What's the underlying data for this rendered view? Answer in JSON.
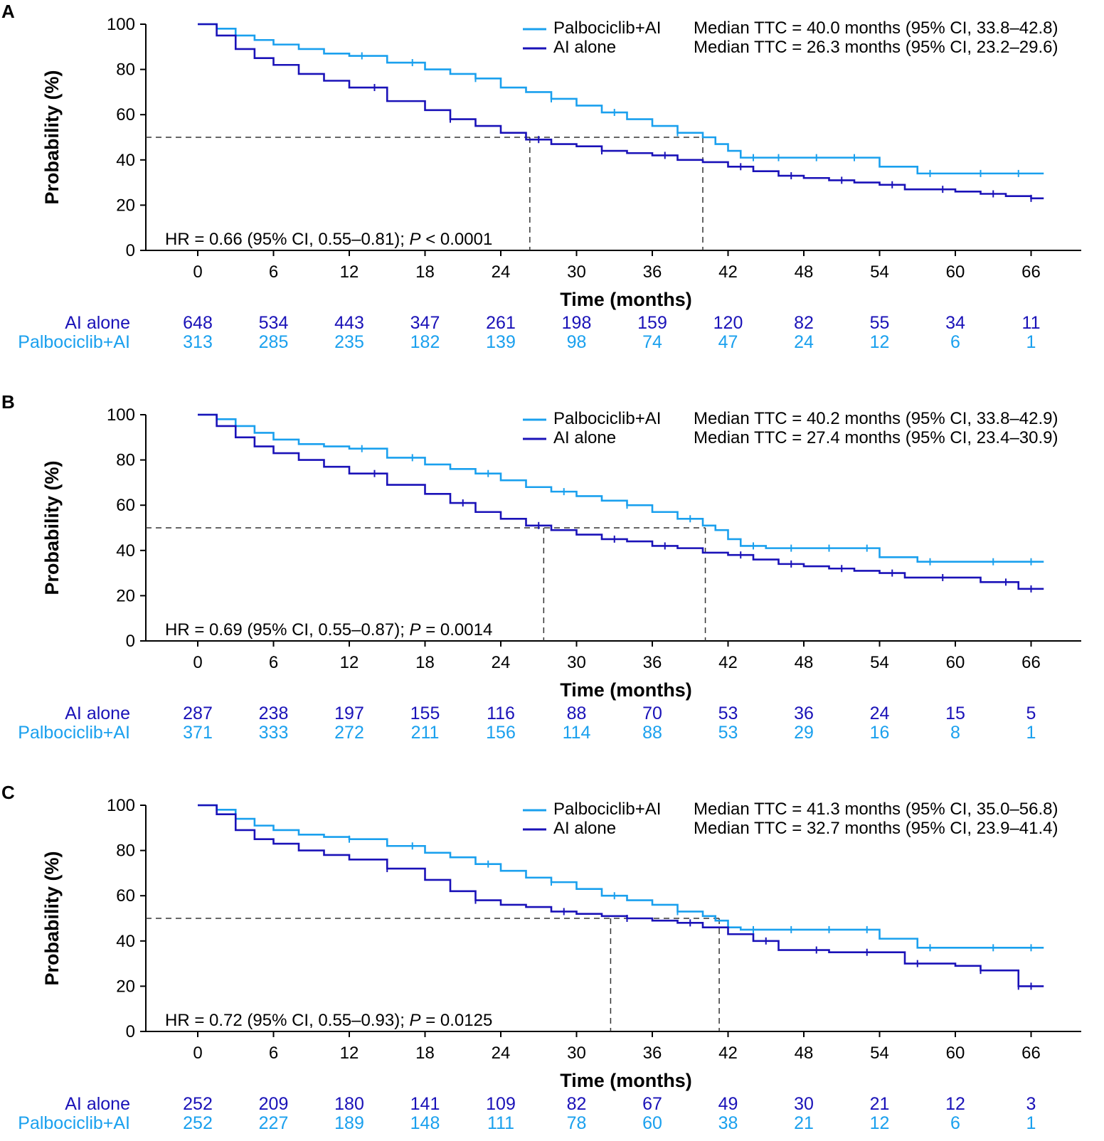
{
  "colors": {
    "palbociclib": "#1aa0ee",
    "ai_alone": "#1a12b8",
    "axis": "#000000",
    "reference": "#333333"
  },
  "chart_data": [
    {
      "type": "line",
      "panel": "A",
      "xlabel": "Time (months)",
      "ylabel": "Probability (%)",
      "xlim": [
        -5,
        69
      ],
      "ylim": [
        0,
        100
      ],
      "xticks": [
        "0",
        "6",
        "12",
        "18",
        "24",
        "30",
        "36",
        "42",
        "48",
        "54",
        "60",
        "66"
      ],
      "yticks": [
        "0",
        "20",
        "40",
        "60",
        "80",
        "100"
      ],
      "legend": {
        "palbociclib": {
          "label": "Palbociclib+AI",
          "median_text": "Median TTC = 40.0 months (95% CI, 33.8–42.8)"
        },
        "ai_alone": {
          "label": "AI alone",
          "median_text": "Median TTC = 26.3 months (95% CI, 23.2–29.6)"
        }
      },
      "hr_text": {
        "prefix": "HR = 0.66 (95% CI, 0.55–0.81); ",
        "p": "P",
        "suffix": " < 0.0001"
      },
      "medians": {
        "ai_alone": 26.3,
        "palbociclib": 40.0
      },
      "series": [
        {
          "name": "Palbociclib+AI",
          "key": "palbociclib",
          "x": [
            0,
            1.5,
            3,
            4.5,
            6,
            8,
            10,
            12,
            15,
            18,
            20,
            22,
            24,
            26,
            28,
            30,
            32,
            34,
            36,
            38,
            40,
            41,
            42,
            43,
            45,
            48,
            50,
            52,
            54,
            57,
            60,
            62,
            64,
            66,
            67
          ],
          "y": [
            100,
            98,
            95,
            93,
            91,
            89,
            87,
            86,
            83,
            80,
            78,
            76,
            72,
            70,
            67,
            64,
            61,
            58,
            55,
            52,
            50,
            47,
            44,
            41,
            41,
            41,
            41,
            41,
            37,
            34,
            34,
            34,
            34,
            34,
            34
          ],
          "censor_x": [
            13,
            17,
            22,
            28,
            33,
            38,
            44,
            46,
            49,
            52,
            58,
            62,
            65
          ]
        },
        {
          "name": "AI alone",
          "key": "ai_alone",
          "x": [
            0,
            1.5,
            3,
            4.5,
            6,
            8,
            10,
            12,
            15,
            18,
            20,
            22,
            24,
            26,
            28,
            30,
            32,
            34,
            36,
            38,
            40,
            42,
            44,
            46,
            48,
            50,
            52,
            54,
            56,
            58,
            60,
            62,
            64,
            66,
            67
          ],
          "y": [
            100,
            95,
            89,
            85,
            82,
            78,
            75,
            72,
            66,
            62,
            58,
            55,
            52,
            49,
            47,
            46,
            44,
            43,
            42,
            40,
            39,
            37,
            35,
            33,
            32,
            31,
            30,
            29,
            27,
            27,
            26,
            25,
            24,
            23,
            23
          ],
          "censor_x": [
            14,
            20,
            27,
            32,
            37,
            43,
            47,
            51,
            55,
            59,
            63,
            66
          ]
        }
      ],
      "risk_table": {
        "times": [
          "0",
          "6",
          "12",
          "18",
          "24",
          "30",
          "36",
          "42",
          "48",
          "54",
          "60",
          "66"
        ],
        "ai_alone": {
          "label": "AI alone",
          "counts": [
            "648",
            "534",
            "443",
            "347",
            "261",
            "198",
            "159",
            "120",
            "82",
            "55",
            "34",
            "11"
          ]
        },
        "palbociclib": {
          "label": "Palbociclib+AI",
          "counts": [
            "313",
            "285",
            "235",
            "182",
            "139",
            "98",
            "74",
            "47",
            "24",
            "12",
            "6",
            "1"
          ]
        }
      }
    },
    {
      "type": "line",
      "panel": "B",
      "xlabel": "Time (months)",
      "ylabel": "Probability (%)",
      "xlim": [
        -5,
        69
      ],
      "ylim": [
        0,
        100
      ],
      "xticks": [
        "0",
        "6",
        "12",
        "18",
        "24",
        "30",
        "36",
        "42",
        "48",
        "54",
        "60",
        "66"
      ],
      "yticks": [
        "0",
        "20",
        "40",
        "60",
        "80",
        "100"
      ],
      "legend": {
        "palbociclib": {
          "label": "Palbociclib+AI",
          "median_text": "Median TTC = 40.2 months (95% CI, 33.8–42.9)"
        },
        "ai_alone": {
          "label": "AI alone",
          "median_text": "Median TTC = 27.4 months (95% CI, 23.4–30.9)"
        }
      },
      "hr_text": {
        "prefix": "HR = 0.69 (95% CI, 0.55–0.87); ",
        "p": "P",
        "suffix": " = 0.0014"
      },
      "medians": {
        "ai_alone": 27.4,
        "palbociclib": 40.2
      },
      "series": [
        {
          "name": "Palbociclib+AI",
          "key": "palbociclib",
          "x": [
            0,
            1.5,
            3,
            4.5,
            6,
            8,
            10,
            12,
            15,
            18,
            20,
            22,
            24,
            26,
            28,
            30,
            32,
            34,
            36,
            38,
            40,
            41,
            42,
            43,
            45,
            48,
            50,
            52,
            54,
            57,
            60,
            62,
            64,
            66,
            67
          ],
          "y": [
            100,
            98,
            95,
            92,
            89,
            87,
            86,
            85,
            81,
            78,
            76,
            74,
            71,
            68,
            66,
            64,
            62,
            60,
            57,
            54,
            51,
            49,
            45,
            42,
            41,
            41,
            41,
            41,
            37,
            35,
            35,
            35,
            35,
            35,
            35
          ],
          "censor_x": [
            13,
            17,
            23,
            29,
            34,
            39,
            44,
            47,
            50,
            53,
            58,
            63,
            66
          ]
        },
        {
          "name": "AI alone",
          "key": "ai_alone",
          "x": [
            0,
            1.5,
            3,
            4.5,
            6,
            8,
            10,
            12,
            15,
            18,
            20,
            22,
            24,
            26,
            28,
            30,
            32,
            34,
            36,
            38,
            40,
            42,
            44,
            46,
            48,
            50,
            52,
            54,
            56,
            58,
            60,
            62,
            64,
            65,
            67
          ],
          "y": [
            100,
            95,
            90,
            86,
            83,
            80,
            77,
            74,
            69,
            65,
            61,
            57,
            54,
            51,
            49,
            47,
            45,
            44,
            42,
            41,
            39,
            38,
            36,
            34,
            33,
            32,
            31,
            30,
            28,
            28,
            28,
            26,
            26,
            23,
            23
          ],
          "censor_x": [
            14,
            21,
            27,
            33,
            37,
            43,
            47,
            51,
            55,
            59,
            64,
            66
          ]
        }
      ],
      "risk_table": {
        "times": [
          "0",
          "6",
          "12",
          "18",
          "24",
          "30",
          "36",
          "42",
          "48",
          "54",
          "60",
          "66"
        ],
        "ai_alone": {
          "label": "AI alone",
          "counts": [
            "287",
            "238",
            "197",
            "155",
            "116",
            "88",
            "70",
            "53",
            "36",
            "24",
            "15",
            "5"
          ]
        },
        "palbociclib": {
          "label": "Palbociclib+AI",
          "counts": [
            "371",
            "333",
            "272",
            "211",
            "156",
            "114",
            "88",
            "53",
            "29",
            "16",
            "8",
            "1"
          ]
        }
      }
    },
    {
      "type": "line",
      "panel": "C",
      "xlabel": "Time (months)",
      "ylabel": "Probability (%)",
      "xlim": [
        -5,
        69
      ],
      "ylim": [
        0,
        100
      ],
      "xticks": [
        "0",
        "6",
        "12",
        "18",
        "24",
        "30",
        "36",
        "42",
        "48",
        "54",
        "60",
        "66"
      ],
      "yticks": [
        "0",
        "20",
        "40",
        "60",
        "80",
        "100"
      ],
      "legend": {
        "palbociclib": {
          "label": "Palbociclib+AI",
          "median_text": "Median TTC = 41.3 months (95% CI, 35.0–56.8)"
        },
        "ai_alone": {
          "label": "AI alone",
          "median_text": "Median TTC = 32.7 months (95% CI, 23.9–41.4)"
        }
      },
      "hr_text": {
        "prefix": "HR = 0.72 (95% CI, 0.55–0.93); ",
        "p": "P",
        "suffix": " = 0.0125"
      },
      "medians": {
        "ai_alone": 32.7,
        "palbociclib": 41.3
      },
      "series": [
        {
          "name": "Palbociclib+AI",
          "key": "palbociclib",
          "x": [
            0,
            1.5,
            3,
            4.5,
            6,
            8,
            10,
            12,
            15,
            18,
            20,
            22,
            24,
            26,
            28,
            30,
            32,
            34,
            36,
            38,
            40,
            41,
            42,
            43,
            45,
            48,
            50,
            52,
            54,
            57,
            60,
            62,
            64,
            66,
            67
          ],
          "y": [
            100,
            98,
            94,
            91,
            89,
            87,
            86,
            85,
            82,
            79,
            77,
            74,
            71,
            68,
            66,
            63,
            60,
            58,
            56,
            53,
            51,
            49,
            46,
            45,
            45,
            45,
            45,
            45,
            41,
            37,
            37,
            37,
            37,
            37,
            37
          ],
          "censor_x": [
            12,
            17,
            23,
            28,
            33,
            38,
            44,
            47,
            50,
            53,
            58,
            63,
            66
          ]
        },
        {
          "name": "AI alone",
          "key": "ai_alone",
          "x": [
            0,
            1.5,
            3,
            4.5,
            6,
            8,
            10,
            12,
            15,
            18,
            20,
            22,
            24,
            26,
            28,
            30,
            32,
            34,
            36,
            38,
            40,
            42,
            44,
            46,
            48,
            50,
            52,
            54,
            56,
            58,
            60,
            62,
            64,
            65,
            67
          ],
          "y": [
            100,
            96,
            89,
            85,
            83,
            80,
            78,
            76,
            72,
            67,
            62,
            58,
            56,
            55,
            53,
            52,
            51,
            50,
            49,
            48,
            46,
            43,
            40,
            36,
            36,
            35,
            35,
            35,
            30,
            30,
            29,
            27,
            27,
            20,
            20
          ],
          "censor_x": [
            15,
            22,
            29,
            34,
            39,
            45,
            49,
            53,
            57,
            62,
            65,
            66
          ]
        }
      ],
      "risk_table": {
        "times": [
          "0",
          "6",
          "12",
          "18",
          "24",
          "30",
          "36",
          "42",
          "48",
          "54",
          "60",
          "66"
        ],
        "ai_alone": {
          "label": "AI alone",
          "counts": [
            "252",
            "209",
            "180",
            "141",
            "109",
            "82",
            "67",
            "49",
            "30",
            "21",
            "12",
            "3"
          ]
        },
        "palbociclib": {
          "label": "Palbociclib+AI",
          "counts": [
            "252",
            "227",
            "189",
            "148",
            "111",
            "78",
            "60",
            "38",
            "21",
            "12",
            "6",
            "1"
          ]
        }
      }
    }
  ]
}
